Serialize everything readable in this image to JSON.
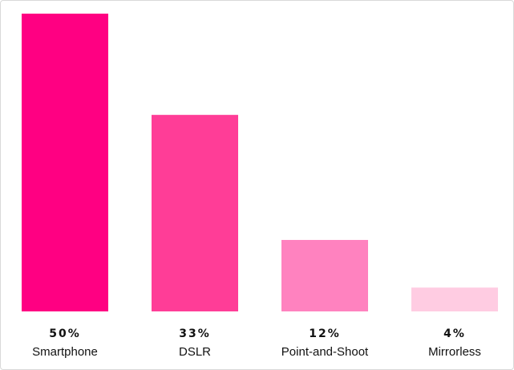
{
  "chart_data": {
    "type": "bar",
    "title": "",
    "xlabel": "",
    "ylabel": "",
    "categories": [
      "Smartphone",
      "DSLR",
      "Point-and-Shoot",
      "Mirrorless"
    ],
    "values": [
      50,
      33,
      12,
      4
    ],
    "value_labels": [
      "50%",
      "33%",
      "12%",
      "4%"
    ],
    "ylim": [
      0,
      50
    ],
    "grid": false,
    "legend": "none",
    "colors": [
      "#ff0082",
      "#ff3d97",
      "#ff82bf",
      "#ffcce2"
    ]
  }
}
